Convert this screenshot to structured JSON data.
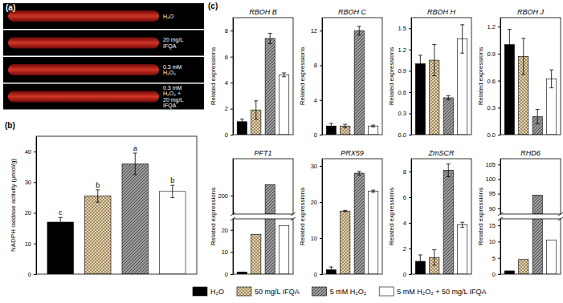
{
  "panel_labels": [
    "(a)",
    "(b)",
    "(c)"
  ],
  "micrograph": {
    "rows": [
      [
        "H₂O"
      ],
      [
        "20 mg/L",
        "IFQA"
      ],
      [
        "0.3 mM",
        "H₂O₂"
      ],
      [
        "0.3 mM",
        "H₂O₂ +",
        "20 mg/L",
        "IFQA"
      ]
    ]
  },
  "legend_items": [
    {
      "name": "H₂O",
      "color": "#000000"
    },
    {
      "name": "50 mg/L IFQA",
      "color": "#e8d3a8"
    },
    {
      "name": "5 mM H₂O₂",
      "color": "#9a9a9a"
    },
    {
      "name": "5 mM H₂O₂ + 50 mg/L IFQA",
      "color": "#ffffff"
    }
  ],
  "chart_data": [
    {
      "type": "bar",
      "y_label": "NADPH oxidase activity (μmol/g)",
      "categories": [
        null,
        null,
        null,
        null
      ],
      "values": [
        17,
        25.5,
        36,
        27
      ],
      "errors": [
        1.5,
        2,
        3.5,
        2
      ],
      "letters": [
        "c",
        "b",
        "a",
        "b"
      ],
      "colors": [
        "#000000",
        "#e8d3a8",
        "#9a9a9a",
        "#ffffff"
      ],
      "ylim": [
        0,
        45
      ],
      "yticks": [
        0,
        10,
        20,
        30,
        40
      ]
    },
    {
      "type": "bar",
      "title": "RBOH B",
      "y_label": "Related expressions",
      "categories": [
        null,
        null,
        null,
        null
      ],
      "values": [
        1.0,
        1.9,
        7.4,
        4.6
      ],
      "errors": [
        0.2,
        0.7,
        0.4,
        0.15
      ],
      "colors": [
        "#000000",
        "#e8d3a8",
        "#9a9a9a",
        "#ffffff"
      ],
      "ylim": [
        0,
        9
      ],
      "yticks": [
        0,
        2,
        4,
        6,
        8
      ]
    },
    {
      "type": "bar",
      "title": "RBOH C",
      "y_label": "Related expressions",
      "categories": [
        null,
        null,
        null,
        null
      ],
      "values": [
        1.0,
        1.0,
        12.0,
        1.0
      ],
      "errors": [
        0.3,
        0.2,
        0.5,
        0.1
      ],
      "colors": [
        "#000000",
        "#e8d3a8",
        "#9a9a9a",
        "#ffffff"
      ],
      "ylim": [
        0,
        13.5
      ],
      "yticks": [
        0,
        4,
        8,
        12
      ]
    },
    {
      "type": "bar",
      "title": "RBOH H",
      "y_label": "Related expressions",
      "categories": [
        null,
        null,
        null,
        null
      ],
      "values": [
        1.0,
        1.05,
        0.52,
        1.35
      ],
      "errors": [
        0.12,
        0.22,
        0.03,
        0.2
      ],
      "colors": [
        "#000000",
        "#e8d3a8",
        "#9a9a9a",
        "#ffffff"
      ],
      "ylim": [
        0,
        1.65
      ],
      "yticks": [
        {
          "value": 0,
          "label": "0.0"
        },
        0.3,
        0.6,
        0.9,
        1.2,
        1.5
      ]
    },
    {
      "type": "bar",
      "title": "RBOH J",
      "y_label": "Related expressions",
      "categories": [
        null,
        null,
        null,
        null
      ],
      "values": [
        1.0,
        0.87,
        0.2,
        0.62
      ],
      "errors": [
        0.17,
        0.2,
        0.08,
        0.1
      ],
      "colors": [
        "#000000",
        "#e8d3a8",
        "#9a9a9a",
        "#ffffff"
      ],
      "ylim": [
        0,
        1.3
      ],
      "yticks": [
        {
          "value": 0,
          "label": "0.0"
        },
        0.3,
        0.6,
        0.9,
        1.2
      ]
    },
    {
      "type": "bar",
      "title": "PFT1",
      "y_label": "Related expressions",
      "categories": [
        null,
        null,
        null,
        null
      ],
      "values": [
        1,
        18,
        203,
        22
      ],
      "colors": [
        "#000000",
        "#e8d3a8",
        "#9a9a9a",
        "#ffffff"
      ],
      "ylim": [
        0,
        210
      ],
      "ybreak": [
        25,
        195
      ],
      "yticks": [
        0,
        10,
        20,
        200
      ]
    },
    {
      "type": "bar",
      "title": "PRX59",
      "y_label": "Related expressions",
      "categories": [
        null,
        null,
        null,
        null
      ],
      "values": [
        1.2,
        17.5,
        28,
        23
      ],
      "errors": [
        0.8,
        0.2,
        0.5,
        0.3
      ],
      "colors": [
        "#000000",
        "#e8d3a8",
        "#9a9a9a",
        "#ffffff"
      ],
      "ylim": [
        0,
        32
      ],
      "yticks": [
        0,
        10,
        20,
        30
      ]
    },
    {
      "type": "bar",
      "title": "ZmSCR",
      "y_label": "Related expressions",
      "categories": [
        null,
        null,
        null,
        null
      ],
      "values": [
        1.0,
        1.3,
        8.1,
        3.85
      ],
      "errors": [
        0.5,
        0.6,
        0.5,
        0.2
      ],
      "colors": [
        "#000000",
        "#e8d3a8",
        "#9a9a9a",
        "#ffffff"
      ],
      "ylim": [
        0,
        9
      ],
      "yticks": [
        0,
        2,
        4,
        6,
        8
      ]
    },
    {
      "type": "bar",
      "title": "RHD6",
      "y_label": "Related expressions",
      "categories": [
        null,
        null,
        null,
        null
      ],
      "values": [
        1,
        4.5,
        94.5,
        10.5
      ],
      "colors": [
        "#000000",
        "#e8d3a8",
        "#9a9a9a",
        "#ffffff"
      ],
      "ylim": [
        0,
        107
      ],
      "ybreak": [
        17,
        88
      ],
      "yticks": [
        0,
        5,
        10,
        15,
        90,
        95,
        100,
        105
      ]
    }
  ]
}
